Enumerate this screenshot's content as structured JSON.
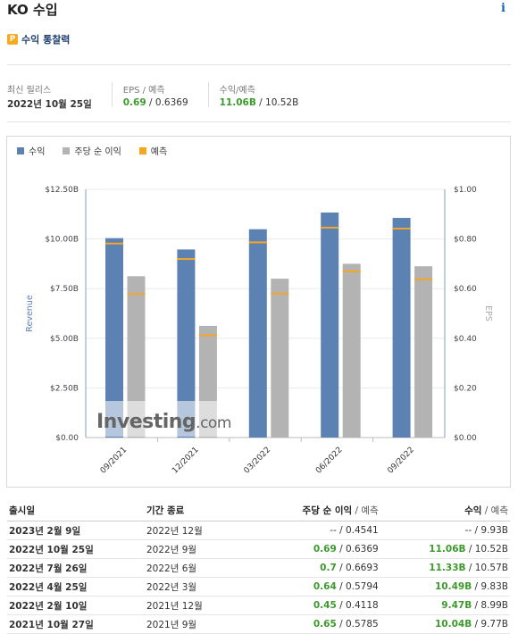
{
  "header": {
    "title": "KO 수입",
    "info_icon": "info-icon"
  },
  "premium": {
    "label": "수익 통찰력",
    "icon_letter": "P"
  },
  "summary": {
    "latest_label": "최신 릴리스",
    "latest_value": "2022년 10월 25일",
    "eps_label": "EPS / 예측",
    "eps_actual": "0.69",
    "eps_forecast": " / 0.6369",
    "rev_label": "수익/예측",
    "rev_actual": "11.06B",
    "rev_forecast": " / 10.52B"
  },
  "legend": {
    "revenue": "수익",
    "eps": "주당 순 이익",
    "forecast": "예측"
  },
  "colors": {
    "revenue": "#5b82b3",
    "eps": "#b3b3b3",
    "forecast": "#f5a623",
    "green": "#3c9a2c"
  },
  "watermark": {
    "brand": "Investing",
    "suffix": ".com"
  },
  "chart_data": {
    "type": "bar",
    "categories": [
      "09/2021",
      "12/2021",
      "03/2022",
      "06/2022",
      "09/2022"
    ],
    "revenue": {
      "values": [
        10.04,
        9.47,
        10.49,
        11.33,
        11.06
      ],
      "forecast": [
        9.77,
        8.99,
        9.83,
        10.57,
        10.52
      ]
    },
    "eps": {
      "values": [
        0.65,
        0.45,
        0.64,
        0.7,
        0.69
      ],
      "forecast": [
        0.5785,
        0.4118,
        0.5794,
        0.6693,
        0.6369
      ]
    },
    "y_left": {
      "label": "Revenue",
      "ticks": [
        "$0.00",
        "$2.50B",
        "$5.00B",
        "$7.50B",
        "$10.00B",
        "$12.50B"
      ],
      "range": [
        0,
        12.5
      ]
    },
    "y_right": {
      "label": "EPS",
      "ticks": [
        "$0.00",
        "$0.20",
        "$0.40",
        "$0.60",
        "$0.80",
        "$1.00"
      ],
      "range": [
        0,
        1.0
      ]
    },
    "legend_position": "top-left"
  },
  "table": {
    "headers": {
      "date": "출시일",
      "period": "기간 종료",
      "eps": "주당 순 이익",
      "eps_suffix": " / 예측",
      "rev": "수익",
      "rev_suffix": " / 예측"
    },
    "rows": [
      {
        "date": "2023년 2월 9일",
        "period": "2022년 12월",
        "eps_actual": "--",
        "eps_forecast": " / 0.4541",
        "rev_actual": "--",
        "rev_forecast": " / 9.93B",
        "eps_green": false,
        "rev_green": false
      },
      {
        "date": "2022년 10월 25일",
        "period": "2022년 9월",
        "eps_actual": "0.69",
        "eps_forecast": " / 0.6369",
        "rev_actual": "11.06B",
        "rev_forecast": " / 10.52B",
        "eps_green": true,
        "rev_green": true
      },
      {
        "date": "2022년 7월 26일",
        "period": "2022년 6월",
        "eps_actual": "0.7",
        "eps_forecast": " / 0.6693",
        "rev_actual": "11.33B",
        "rev_forecast": " / 10.57B",
        "eps_green": true,
        "rev_green": true
      },
      {
        "date": "2022년 4월 25일",
        "period": "2022년 3월",
        "eps_actual": "0.64",
        "eps_forecast": " / 0.5794",
        "rev_actual": "10.49B",
        "rev_forecast": " / 9.83B",
        "eps_green": true,
        "rev_green": true
      },
      {
        "date": "2022년 2월 10일",
        "period": "2021년 12월",
        "eps_actual": "0.45",
        "eps_forecast": " / 0.4118",
        "rev_actual": "9.47B",
        "rev_forecast": " / 8.99B",
        "eps_green": true,
        "rev_green": true
      },
      {
        "date": "2021년 10월 27일",
        "period": "2021년 9월",
        "eps_actual": "0.65",
        "eps_forecast": " / 0.5785",
        "rev_actual": "10.04B",
        "rev_forecast": " / 9.77B",
        "eps_green": true,
        "rev_green": true
      }
    ]
  }
}
